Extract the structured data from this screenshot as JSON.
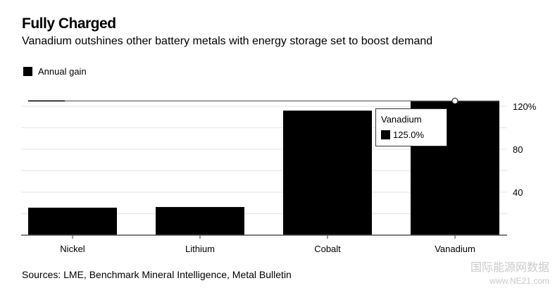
{
  "chart_data": {
    "type": "bar",
    "title": "Fully Charged",
    "subtitle": "Vanadium outshines other battery metals with energy storage set to boost demand",
    "categories": [
      "Nickel",
      "Lithium",
      "Cobalt",
      "Vanadium"
    ],
    "series": [
      {
        "name": "Annual gain",
        "values": [
          25.6,
          26.2,
          116,
          125.0
        ],
        "color": "#000000"
      }
    ],
    "yticks": [
      {
        "v": 40,
        "label": "40"
      },
      {
        "v": 80,
        "label": "80"
      },
      {
        "v": 120,
        "label": "120%"
      }
    ],
    "ylim": [
      0,
      125
    ],
    "grid": true,
    "legend_position": "top-left",
    "y_axis_side": "right",
    "tooltip": {
      "category": "Vanadium",
      "value": "125.0%"
    },
    "source": "Sources: LME, Benchmark Mineral Intelligence, Metal Bulletin"
  },
  "watermark": {
    "line1": "国际能源网数据",
    "line2": "www.NE21.com"
  }
}
